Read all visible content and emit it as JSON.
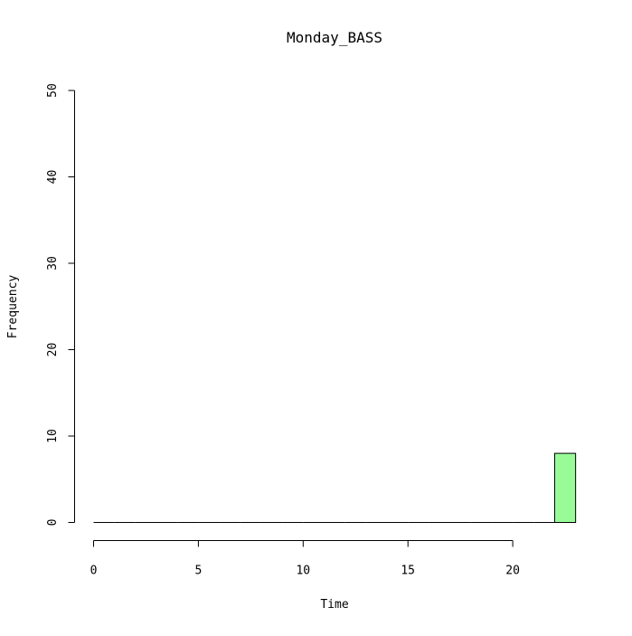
{
  "chart_data": {
    "type": "bar",
    "title": "Monday_BASS",
    "xlabel": "Time",
    "ylabel": "Frequency",
    "xlim": [
      0,
      24
    ],
    "ylim": [
      0,
      50
    ],
    "x_ticks": [
      0,
      5,
      10,
      15,
      20
    ],
    "x_tick_labels": [
      "0",
      "5",
      "10",
      "15",
      "20"
    ],
    "y_ticks": [
      0,
      10,
      20,
      30,
      40,
      50
    ],
    "y_tick_labels": [
      "0",
      "10",
      "20",
      "30",
      "40",
      "50"
    ],
    "bins": [
      {
        "start": 0,
        "end": 1,
        "count": 0
      },
      {
        "start": 1,
        "end": 2,
        "count": 0
      },
      {
        "start": 2,
        "end": 3,
        "count": 0
      },
      {
        "start": 3,
        "end": 4,
        "count": 0
      },
      {
        "start": 4,
        "end": 5,
        "count": 0
      },
      {
        "start": 5,
        "end": 6,
        "count": 0
      },
      {
        "start": 6,
        "end": 7,
        "count": 0
      },
      {
        "start": 7,
        "end": 8,
        "count": 0
      },
      {
        "start": 8,
        "end": 9,
        "count": 0
      },
      {
        "start": 9,
        "end": 10,
        "count": 0
      },
      {
        "start": 10,
        "end": 11,
        "count": 0
      },
      {
        "start": 11,
        "end": 12,
        "count": 0
      },
      {
        "start": 12,
        "end": 13,
        "count": 0
      },
      {
        "start": 13,
        "end": 14,
        "count": 0
      },
      {
        "start": 14,
        "end": 15,
        "count": 0
      },
      {
        "start": 15,
        "end": 16,
        "count": 0
      },
      {
        "start": 16,
        "end": 17,
        "count": 0
      },
      {
        "start": 17,
        "end": 18,
        "count": 0
      },
      {
        "start": 18,
        "end": 19,
        "count": 0
      },
      {
        "start": 19,
        "end": 20,
        "count": 0
      },
      {
        "start": 20,
        "end": 21,
        "count": 0
      },
      {
        "start": 21,
        "end": 22,
        "count": 0
      },
      {
        "start": 22,
        "end": 23,
        "count": 8
      }
    ],
    "bar_fill_color": "#98fb98",
    "bar_stroke_color": "#000000",
    "grid": false,
    "legend": "none"
  }
}
